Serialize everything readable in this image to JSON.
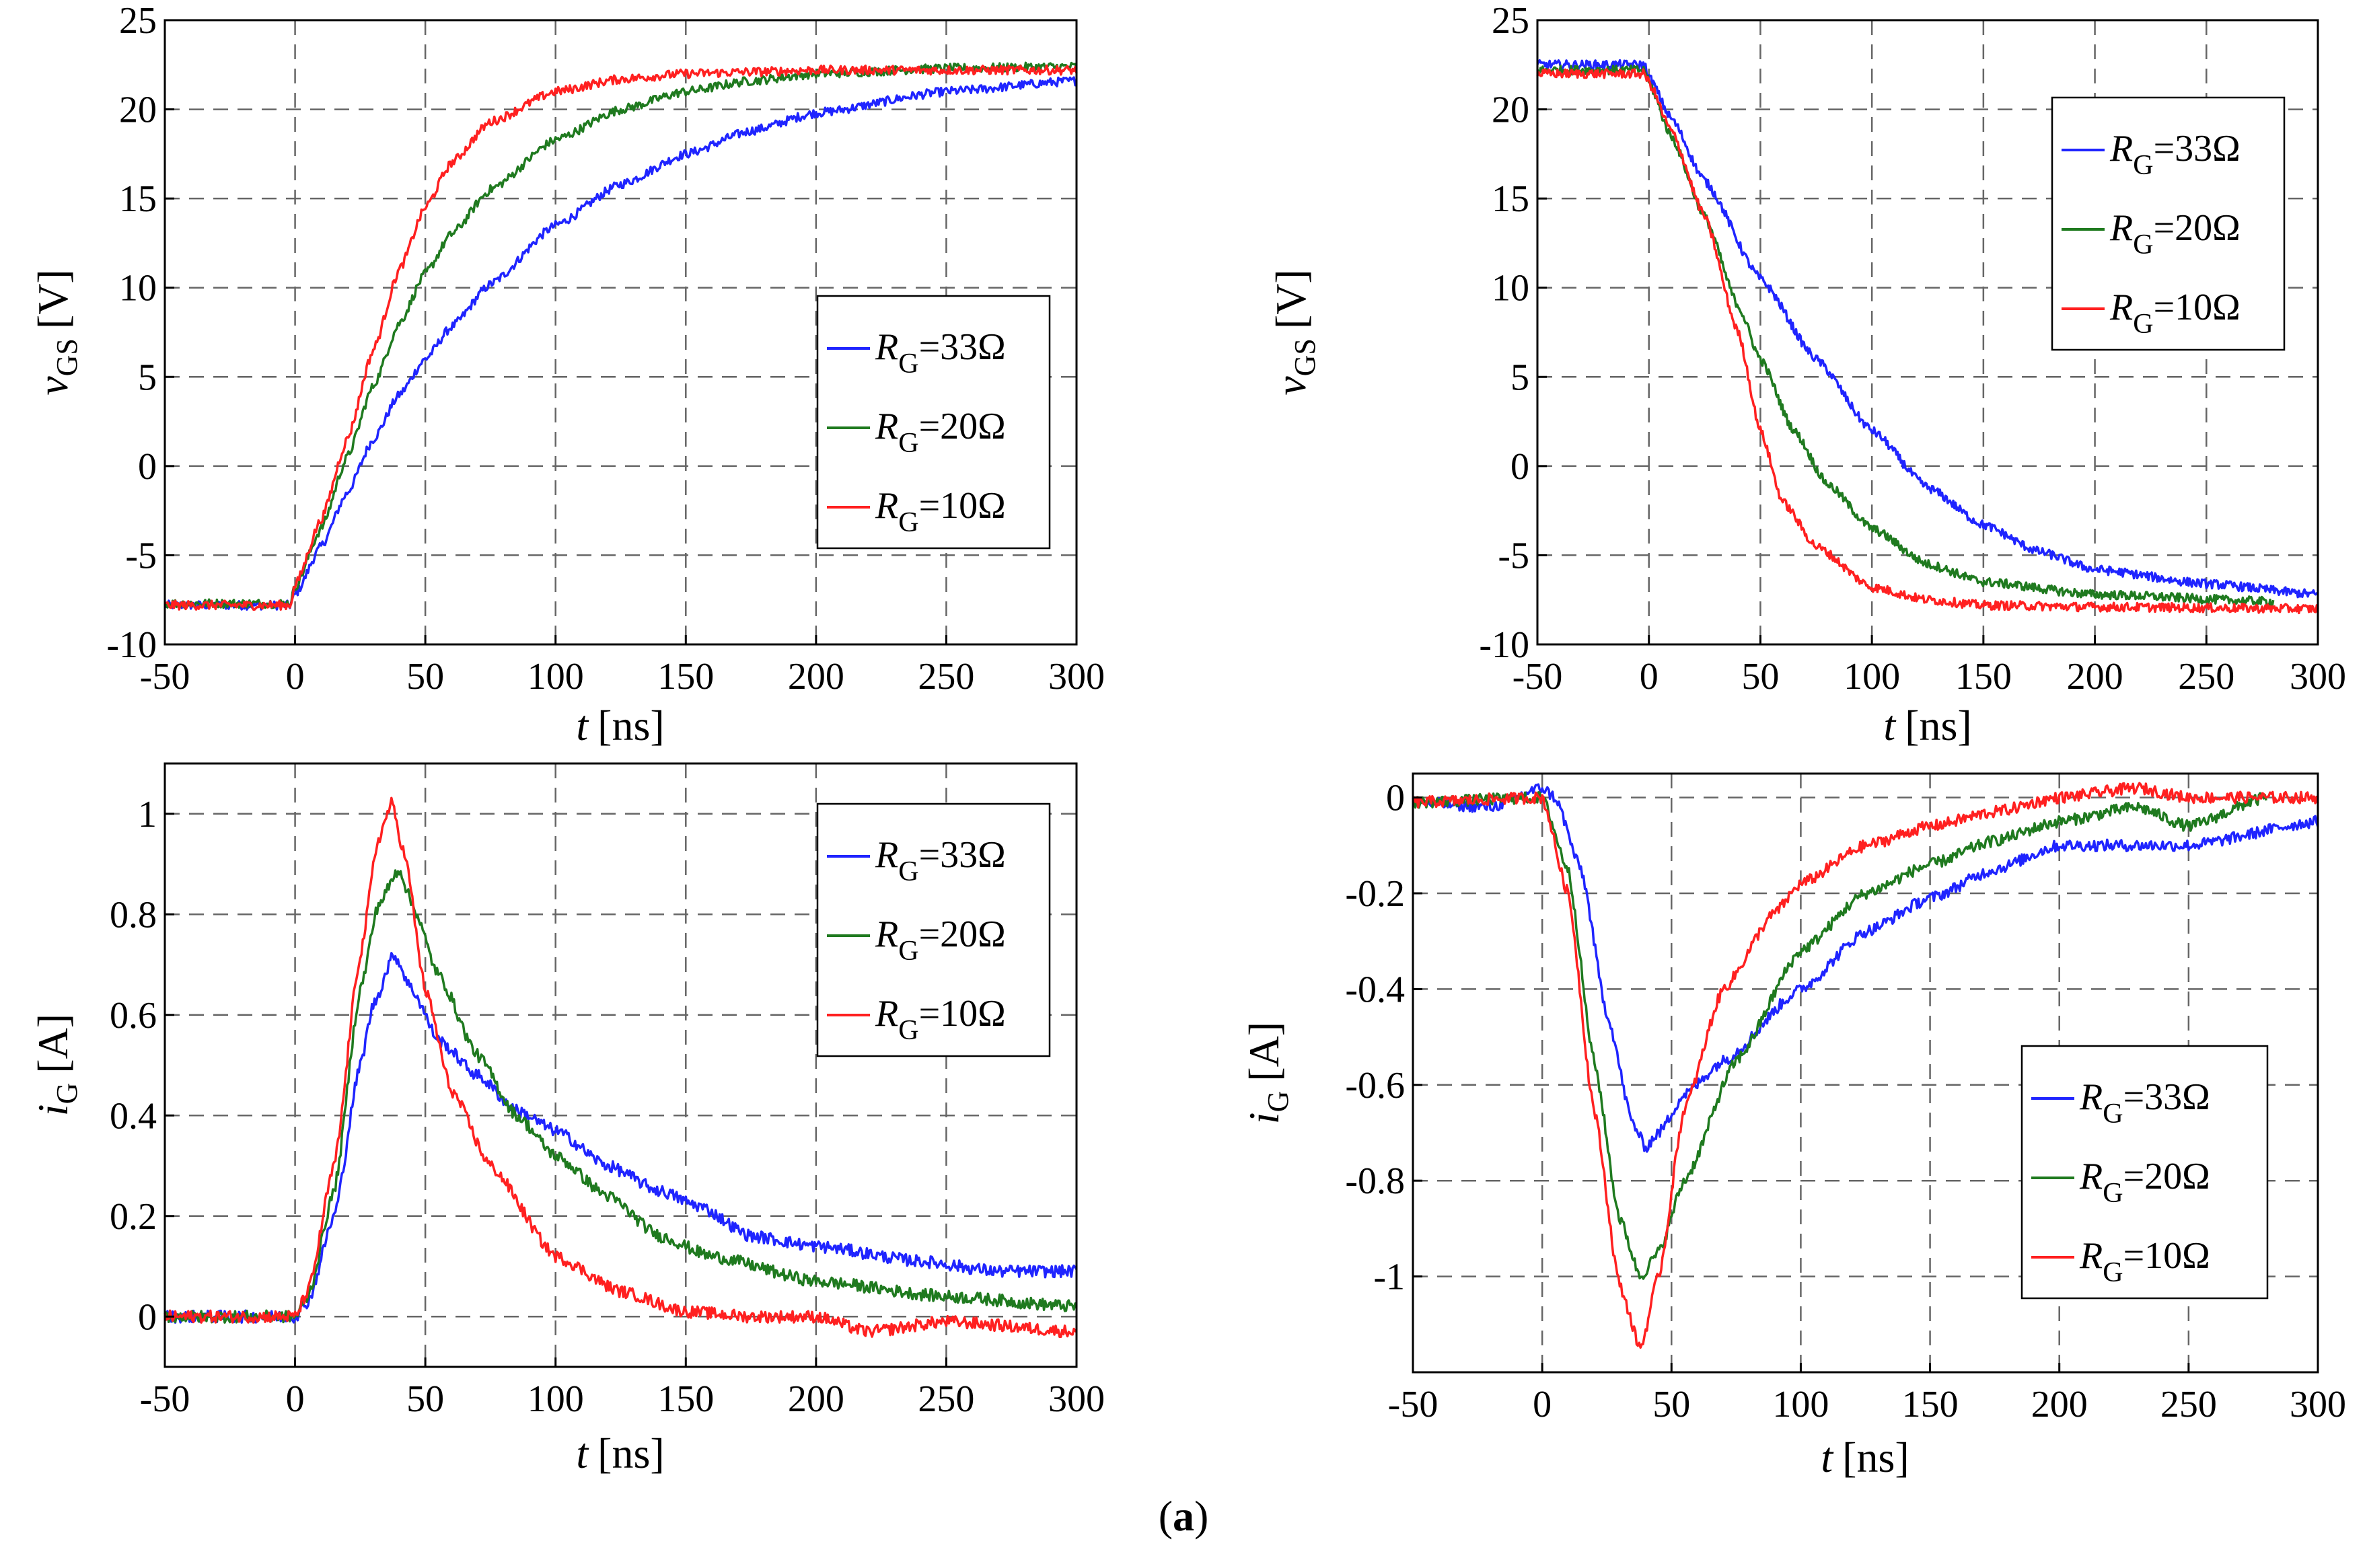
{
  "colors": {
    "blue": "#1f24ff",
    "green": "#1f7a1f",
    "red": "#ff2020",
    "grid": "#666666"
  },
  "caption": {
    "open": "(",
    "letter": "a",
    "close": ")"
  },
  "chart_data": [
    {
      "type": "line",
      "id": "turn-on-vgs",
      "xlabel_var": "t",
      "xlabel_unit": "[ns]",
      "ylabel_var": "v",
      "ylabel_sub": "GS",
      "ylabel_unit": "[V]",
      "xlim": [
        -50,
        300
      ],
      "ylim": [
        -10,
        25
      ],
      "xticks": [
        -50,
        0,
        50,
        100,
        150,
        200,
        250,
        300
      ],
      "yticks": [
        -10,
        -5,
        0,
        5,
        10,
        15,
        20,
        25
      ],
      "grid": true,
      "legend_position": "center-right",
      "noise": 0.25,
      "series": [
        {
          "name": "R_G=33Ω",
          "label_main": "R",
          "label_sub": "G",
          "label_val": "=33Ω",
          "color": "blue",
          "x": [
            -50,
            -2,
            0,
            10,
            20,
            30,
            40,
            50,
            60,
            75,
            100,
            125,
            150,
            175,
            200,
            250,
            300
          ],
          "y": [
            -7.8,
            -7.8,
            -7.2,
            -4.5,
            -1.5,
            1.5,
            4.0,
            6.0,
            7.8,
            10.2,
            13.5,
            15.8,
            17.5,
            18.8,
            19.8,
            21.0,
            21.6
          ]
        },
        {
          "name": "R_G=20Ω",
          "label_main": "R",
          "label_sub": "G",
          "label_val": "=20Ω",
          "color": "green",
          "x": [
            -50,
            -2,
            0,
            10,
            20,
            30,
            40,
            50,
            60,
            75,
            100,
            125,
            150,
            175,
            200,
            250,
            300
          ],
          "y": [
            -7.7,
            -7.7,
            -6.8,
            -3.5,
            0.5,
            4.5,
            8.0,
            10.8,
            13.0,
            15.5,
            18.3,
            20.0,
            21.0,
            21.6,
            22.0,
            22.3,
            22.4
          ]
        },
        {
          "name": "R_G=10Ω",
          "label_main": "R",
          "label_sub": "G",
          "label_val": "=10Ω",
          "color": "red",
          "x": [
            -50,
            -2,
            0,
            10,
            20,
            30,
            40,
            50,
            60,
            75,
            100,
            125,
            150,
            175,
            200,
            250,
            300
          ],
          "y": [
            -7.8,
            -7.8,
            -6.7,
            -3.0,
            1.5,
            6.5,
            11.0,
            14.5,
            17.0,
            19.3,
            21.0,
            21.7,
            22.0,
            22.1,
            22.2,
            22.2,
            22.2
          ]
        }
      ]
    },
    {
      "type": "line",
      "id": "turn-off-vgs",
      "xlabel_var": "t",
      "xlabel_unit": "[ns]",
      "ylabel_var": "v",
      "ylabel_sub": "GS",
      "ylabel_unit": "[V]",
      "xlim": [
        -50,
        300
      ],
      "ylim": [
        -10,
        25
      ],
      "xticks": [
        -50,
        0,
        50,
        100,
        150,
        200,
        250,
        300
      ],
      "yticks": [
        -10,
        -5,
        0,
        5,
        10,
        15,
        20,
        25
      ],
      "grid": true,
      "legend_position": "top-right",
      "noise": 0.25,
      "series": [
        {
          "name": "R_G=33Ω",
          "label_main": "R",
          "label_sub": "G",
          "label_val": "=33Ω",
          "color": "blue",
          "x": [
            -50,
            -2,
            0,
            10,
            25,
            50,
            75,
            100,
            125,
            150,
            175,
            200,
            250,
            300
          ],
          "y": [
            22.5,
            22.5,
            21.8,
            19.5,
            16.0,
            10.5,
            6.0,
            2.0,
            -1.2,
            -3.3,
            -4.8,
            -5.8,
            -6.6,
            -7.2
          ]
        },
        {
          "name": "R_G=20Ω",
          "label_main": "R",
          "label_sub": "G",
          "label_val": "=20Ω",
          "color": "green",
          "x": [
            -50,
            -2,
            0,
            10,
            25,
            40,
            50,
            65,
            80,
            100,
            125,
            150,
            200,
            280
          ],
          "y": [
            22.2,
            22.2,
            21.5,
            18.5,
            14.0,
            9.0,
            6.0,
            2.0,
            -1.0,
            -3.5,
            -5.5,
            -6.5,
            -7.2,
            -7.6
          ]
        },
        {
          "name": "R_G=10Ω",
          "label_main": "R",
          "label_sub": "G",
          "label_val": "=10Ω",
          "color": "red",
          "x": [
            -50,
            -2,
            0,
            10,
            25,
            40,
            50,
            60,
            75,
            100,
            125,
            150,
            200,
            300
          ],
          "y": [
            22.0,
            22.0,
            21.5,
            18.8,
            14.0,
            7.5,
            2.0,
            -2.0,
            -4.5,
            -6.8,
            -7.5,
            -7.8,
            -7.9,
            -8.0
          ]
        }
      ]
    },
    {
      "type": "line",
      "id": "turn-on-ig",
      "xlabel_var": "t",
      "xlabel_unit": "[ns]",
      "ylabel_var": "i",
      "ylabel_sub": "G",
      "ylabel_unit": "[A]",
      "xlim": [
        -50,
        300
      ],
      "ylim": [
        -0.1,
        1.1
      ],
      "xticks": [
        -50,
        0,
        50,
        100,
        150,
        200,
        250,
        300
      ],
      "yticks": [
        0,
        0.2,
        0.4,
        0.6,
        0.8,
        1
      ],
      "grid": true,
      "legend_position": "top-right",
      "noise": 0.012,
      "series": [
        {
          "name": "R_G=33Ω",
          "label_main": "R",
          "label_sub": "G",
          "label_val": "=33Ω",
          "color": "blue",
          "x": [
            -50,
            0,
            5,
            15,
            25,
            30,
            38,
            45,
            55,
            70,
            85,
            100,
            120,
            140,
            155,
            175,
            200,
            240,
            270,
            300
          ],
          "y": [
            0.0,
            0.0,
            0.03,
            0.2,
            0.5,
            0.62,
            0.72,
            0.65,
            0.55,
            0.48,
            0.41,
            0.37,
            0.3,
            0.25,
            0.22,
            0.16,
            0.14,
            0.11,
            0.09,
            0.09
          ]
        },
        {
          "name": "R_G=20Ω",
          "label_main": "R",
          "label_sub": "G",
          "label_val": "=20Ω",
          "color": "green",
          "x": [
            -50,
            0,
            5,
            15,
            25,
            32,
            40,
            45,
            55,
            70,
            85,
            100,
            120,
            140,
            160,
            200,
            250,
            300
          ],
          "y": [
            0.0,
            0.0,
            0.04,
            0.25,
            0.65,
            0.82,
            0.89,
            0.82,
            0.68,
            0.52,
            0.4,
            0.32,
            0.24,
            0.16,
            0.12,
            0.07,
            0.04,
            0.02
          ]
        },
        {
          "name": "R_G=10Ω",
          "label_main": "R",
          "label_sub": "G",
          "label_val": "=10Ω",
          "color": "red",
          "x": [
            -50,
            0,
            5,
            15,
            25,
            32,
            37,
            42,
            50,
            60,
            75,
            100,
            125,
            150,
            175,
            200,
            220,
            250,
            300
          ],
          "y": [
            0.0,
            0.0,
            0.05,
            0.3,
            0.72,
            0.95,
            1.02,
            0.92,
            0.65,
            0.45,
            0.3,
            0.12,
            0.05,
            0.01,
            0.0,
            0.0,
            -0.03,
            -0.01,
            -0.03
          ]
        }
      ]
    },
    {
      "type": "line",
      "id": "turn-off-ig",
      "xlabel_var": "t",
      "xlabel_unit": "[ns]",
      "ylabel_var": "i",
      "ylabel_sub": "G",
      "ylabel_unit": "[A]",
      "xlim": [
        -50,
        300
      ],
      "ylim": [
        -1.2,
        0.05
      ],
      "xticks": [
        -50,
        0,
        50,
        100,
        150,
        200,
        250,
        300
      ],
      "yticks": [
        -1,
        -0.8,
        -0.6,
        -0.4,
        -0.2,
        0
      ],
      "grid": true,
      "legend_position": "bottom-right",
      "noise": 0.012,
      "series": [
        {
          "name": "R_G=33Ω",
          "label_main": "R",
          "label_sub": "G",
          "label_val": "=33Ω",
          "color": "blue",
          "x": [
            -50,
            -20,
            0,
            5,
            15,
            25,
            35,
            40,
            45,
            55,
            70,
            100,
            125,
            150,
            175,
            200,
            250,
            300
          ],
          "y": [
            -0.01,
            -0.02,
            0.02,
            0.0,
            -0.15,
            -0.45,
            -0.68,
            -0.73,
            -0.7,
            -0.62,
            -0.55,
            -0.4,
            -0.28,
            -0.21,
            -0.15,
            -0.1,
            -0.1,
            -0.05
          ]
        },
        {
          "name": "R_G=20Ω",
          "label_main": "R",
          "label_sub": "G",
          "label_val": "=20Ω",
          "color": "green",
          "x": [
            -50,
            0,
            10,
            20,
            30,
            38,
            45,
            55,
            75,
            100,
            125,
            150,
            175,
            200,
            230,
            250,
            280
          ],
          "y": [
            -0.01,
            0.0,
            -0.15,
            -0.55,
            -0.88,
            -1.0,
            -0.95,
            -0.8,
            -0.55,
            -0.32,
            -0.2,
            -0.14,
            -0.09,
            -0.05,
            -0.02,
            -0.06,
            0.0
          ]
        },
        {
          "name": "R_G=10Ω",
          "label_main": "R",
          "label_sub": "G",
          "label_val": "=10Ω",
          "color": "red",
          "x": [
            -50,
            0,
            10,
            20,
            30,
            38,
            45,
            55,
            70,
            90,
            100,
            125,
            150,
            175,
            200,
            230,
            250,
            300
          ],
          "y": [
            -0.01,
            0.0,
            -0.2,
            -0.65,
            -1.02,
            -1.15,
            -1.0,
            -0.65,
            -0.4,
            -0.24,
            -0.18,
            -0.1,
            -0.06,
            -0.03,
            0.0,
            0.02,
            0.0,
            0.0
          ]
        }
      ]
    }
  ]
}
